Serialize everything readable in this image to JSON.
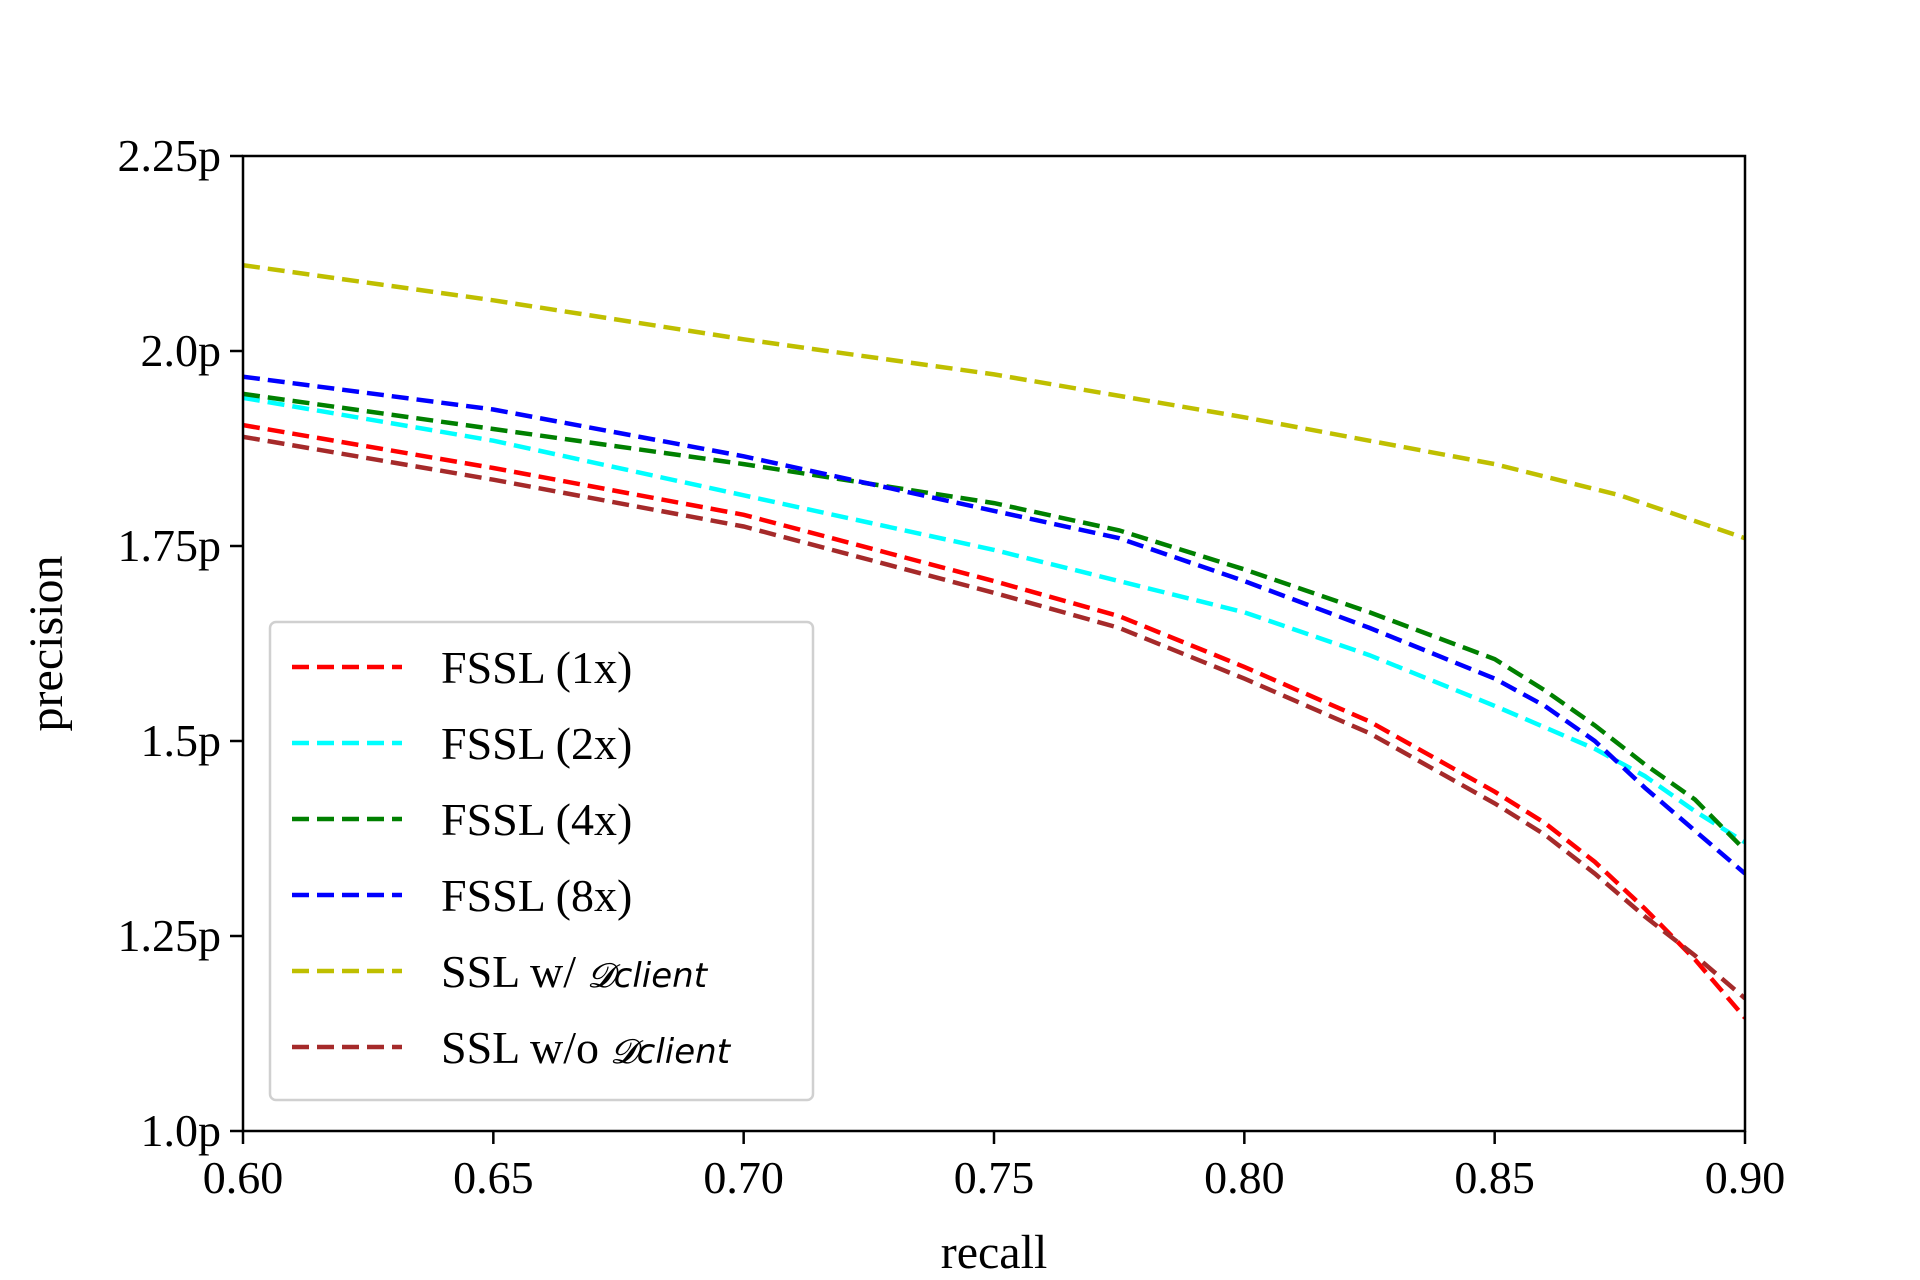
{
  "chart_data": {
    "type": "line",
    "title": "",
    "xlabel": "recall",
    "ylabel": "precision",
    "xlim": [
      0.6,
      0.9
    ],
    "ylim": [
      1.0,
      2.25
    ],
    "x_ticks": [
      0.6,
      0.65,
      0.7,
      0.75,
      0.8,
      0.85,
      0.9
    ],
    "x_tick_labels": [
      "0.60",
      "0.65",
      "0.70",
      "0.75",
      "0.80",
      "0.85",
      "0.90"
    ],
    "y_ticks": [
      1.0,
      1.25,
      1.5,
      1.75,
      2.0,
      2.25
    ],
    "y_tick_labels": [
      "1.0p",
      "1.25p",
      "1.5p",
      "1.75p",
      "2.0p",
      "2.25p"
    ],
    "grid": false,
    "legend_position": "lower-left",
    "line_style": "dashed",
    "series": [
      {
        "name": "FSSL (1x)",
        "color": "#ff0000",
        "points": [
          [
            0.6,
            1.905
          ],
          [
            0.65,
            1.85
          ],
          [
            0.7,
            1.79
          ],
          [
            0.75,
            1.705
          ],
          [
            0.775,
            1.66
          ],
          [
            0.8,
            1.595
          ],
          [
            0.825,
            1.525
          ],
          [
            0.85,
            1.435
          ],
          [
            0.86,
            1.395
          ],
          [
            0.87,
            1.345
          ],
          [
            0.88,
            1.285
          ],
          [
            0.89,
            1.22
          ],
          [
            0.9,
            1.145
          ]
        ]
      },
      {
        "name": "FSSL (2x)",
        "color": "#00ffff",
        "points": [
          [
            0.6,
            1.94
          ],
          [
            0.65,
            1.885
          ],
          [
            0.7,
            1.815
          ],
          [
            0.75,
            1.745
          ],
          [
            0.8,
            1.665
          ],
          [
            0.825,
            1.61
          ],
          [
            0.85,
            1.545
          ],
          [
            0.87,
            1.49
          ],
          [
            0.88,
            1.455
          ],
          [
            0.89,
            1.41
          ],
          [
            0.9,
            1.37
          ]
        ]
      },
      {
        "name": "FSSL (4x)",
        "color": "#008000",
        "points": [
          [
            0.6,
            1.945
          ],
          [
            0.65,
            1.9
          ],
          [
            0.7,
            1.855
          ],
          [
            0.725,
            1.83
          ],
          [
            0.75,
            1.805
          ],
          [
            0.775,
            1.77
          ],
          [
            0.8,
            1.72
          ],
          [
            0.825,
            1.665
          ],
          [
            0.85,
            1.605
          ],
          [
            0.86,
            1.565
          ],
          [
            0.87,
            1.52
          ],
          [
            0.88,
            1.47
          ],
          [
            0.89,
            1.425
          ],
          [
            0.9,
            1.36
          ]
        ]
      },
      {
        "name": "FSSL (8x)",
        "color": "#0000ff",
        "points": [
          [
            0.6,
            1.967
          ],
          [
            0.65,
            1.925
          ],
          [
            0.7,
            1.865
          ],
          [
            0.725,
            1.83
          ],
          [
            0.75,
            1.795
          ],
          [
            0.775,
            1.76
          ],
          [
            0.8,
            1.705
          ],
          [
            0.825,
            1.645
          ],
          [
            0.85,
            1.58
          ],
          [
            0.86,
            1.545
          ],
          [
            0.87,
            1.5
          ],
          [
            0.88,
            1.44
          ],
          [
            0.89,
            1.385
          ],
          [
            0.9,
            1.33
          ]
        ]
      },
      {
        "name": "SSL w/ ",
        "name_math": "𝓓client",
        "color": "#bfbf00",
        "points": [
          [
            0.6,
            2.11
          ],
          [
            0.65,
            2.065
          ],
          [
            0.7,
            2.015
          ],
          [
            0.75,
            1.97
          ],
          [
            0.8,
            1.915
          ],
          [
            0.85,
            1.855
          ],
          [
            0.875,
            1.815
          ],
          [
            0.9,
            1.76
          ]
        ]
      },
      {
        "name": "SSL w/o ",
        "name_math": "𝓓client",
        "color": "#a52a2a",
        "points": [
          [
            0.6,
            1.89
          ],
          [
            0.65,
            1.835
          ],
          [
            0.7,
            1.775
          ],
          [
            0.75,
            1.69
          ],
          [
            0.775,
            1.645
          ],
          [
            0.8,
            1.58
          ],
          [
            0.825,
            1.51
          ],
          [
            0.85,
            1.42
          ],
          [
            0.86,
            1.38
          ],
          [
            0.87,
            1.33
          ],
          [
            0.88,
            1.275
          ],
          [
            0.89,
            1.225
          ],
          [
            0.9,
            1.17
          ]
        ]
      }
    ]
  }
}
